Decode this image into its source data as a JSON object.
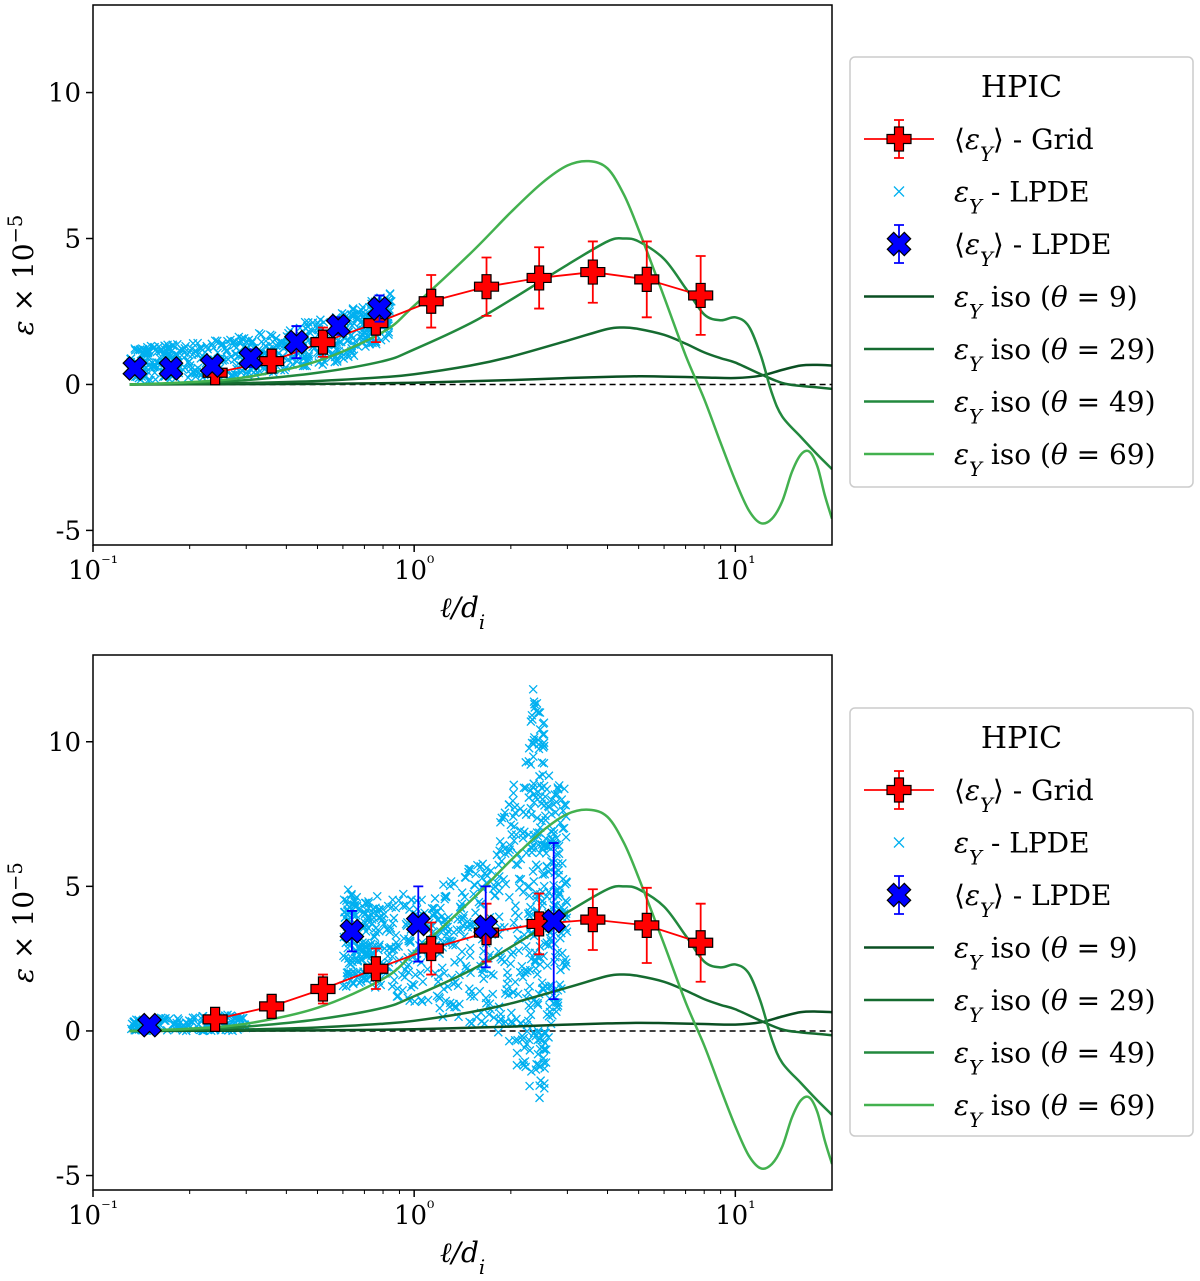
{
  "chart_data": [
    {
      "type": "line",
      "xscale": "log",
      "xlim": [
        0.1,
        20
      ],
      "ylim": [
        -5.5,
        13
      ],
      "xlabel": "ℓ/d_i",
      "ylabel": "ε × 10⁻⁵",
      "xticks": [
        {
          "value": 0.1,
          "label": "10⁻¹"
        },
        {
          "value": 1,
          "label": "10⁰"
        },
        {
          "value": 10,
          "label": "10¹"
        }
      ],
      "yticks": [
        {
          "value": -5,
          "label": "-5"
        },
        {
          "value": 0,
          "label": "0"
        },
        {
          "value": 5,
          "label": "5"
        },
        {
          "value": 10,
          "label": "10"
        }
      ],
      "zero_line": true,
      "grid": false,
      "legend": {
        "title": "HPIC",
        "placement": "right-outside",
        "entries": [
          {
            "label": "⟨ε_Y⟩ - Grid",
            "marker": "plus-errorbar",
            "color": "#ff0000"
          },
          {
            "label": "ε_Y - LPDE",
            "marker": "x-small",
            "color": "#00b0f0"
          },
          {
            "label": "⟨ε_Y⟩ - LPDE",
            "marker": "x-errorbar",
            "color": "#0000ff"
          },
          {
            "label": "ε_Y iso (θ = 9)",
            "marker": "line",
            "color": "#0a4f22"
          },
          {
            "label": "ε_Y iso (θ = 29)",
            "marker": "line",
            "color": "#156b30"
          },
          {
            "label": "ε_Y iso (θ = 49)",
            "marker": "line",
            "color": "#22893e"
          },
          {
            "label": "ε_Y iso (θ = 69)",
            "marker": "line",
            "color": "#43b14f"
          }
        ]
      },
      "series": [
        {
          "kind": "iso",
          "color": "#0a4f22",
          "x": [
            0.13,
            0.2,
            0.3,
            0.5,
            1,
            2,
            3,
            4,
            5,
            6,
            8,
            10,
            12,
            14,
            16,
            18,
            20
          ],
          "y": [
            0,
            0.005,
            0.01,
            0.02,
            0.06,
            0.15,
            0.22,
            0.26,
            0.28,
            0.27,
            0.24,
            0.22,
            0.3,
            0.5,
            0.65,
            0.67,
            0.65
          ]
        },
        {
          "kind": "iso",
          "color": "#156b30",
          "x": [
            0.13,
            0.2,
            0.3,
            0.5,
            0.8,
            1,
            1.5,
            2,
            3,
            4,
            4.5,
            5,
            6,
            7,
            8,
            9,
            10,
            12,
            14,
            16,
            18,
            20
          ],
          "y": [
            0,
            0.02,
            0.05,
            0.12,
            0.25,
            0.35,
            0.65,
            0.95,
            1.5,
            1.9,
            1.95,
            1.9,
            1.7,
            1.4,
            1.1,
            0.9,
            0.75,
            0.35,
            0.05,
            -0.05,
            -0.1,
            -0.15
          ]
        },
        {
          "kind": "iso",
          "color": "#22893e",
          "x": [
            0.13,
            0.2,
            0.3,
            0.5,
            0.8,
            1,
            1.5,
            2,
            3,
            4,
            4.5,
            5,
            6,
            7,
            8,
            9,
            10,
            11,
            12,
            13,
            14,
            16,
            18,
            20
          ],
          "y": [
            0,
            0.05,
            0.15,
            0.4,
            0.8,
            1.2,
            2.1,
            2.9,
            4.1,
            4.9,
            5.0,
            4.9,
            4.3,
            3.3,
            2.4,
            2.2,
            2.3,
            2.0,
            1.0,
            -0.3,
            -1.1,
            -1.8,
            -2.4,
            -2.9
          ]
        },
        {
          "kind": "iso",
          "color": "#43b14f",
          "x": [
            0.13,
            0.2,
            0.3,
            0.5,
            0.8,
            1,
            1.5,
            2,
            2.5,
            3,
            3.5,
            4,
            4.5,
            5,
            6,
            7,
            8,
            9,
            10,
            11,
            12,
            13,
            14,
            15,
            16,
            17,
            18,
            19,
            20
          ],
          "y": [
            0,
            0.08,
            0.25,
            0.8,
            1.8,
            2.7,
            4.5,
            5.9,
            6.9,
            7.5,
            7.65,
            7.4,
            6.5,
            5.3,
            3.0,
            1.0,
            -0.5,
            -2.0,
            -3.3,
            -4.3,
            -4.75,
            -4.6,
            -4.0,
            -3.0,
            -2.4,
            -2.3,
            -2.8,
            -3.8,
            -4.6
          ]
        },
        {
          "kind": "grid",
          "color": "#ff0000",
          "x": [
            0.24,
            0.36,
            0.52,
            0.76,
            1.13,
            1.68,
            2.45,
            3.6,
            5.3,
            7.8
          ],
          "y": [
            0.4,
            0.8,
            1.45,
            2.1,
            2.85,
            3.35,
            3.65,
            3.85,
            3.6,
            3.05
          ],
          "err": [
            0.3,
            0.35,
            0.5,
            0.65,
            0.9,
            1.0,
            1.05,
            1.05,
            1.3,
            1.35
          ]
        },
        {
          "kind": "lpde_mean",
          "color": "#0000ff",
          "x": [
            0.135,
            0.175,
            0.235,
            0.31,
            0.43,
            0.58,
            0.78
          ],
          "y": [
            0.55,
            0.55,
            0.65,
            0.9,
            1.45,
            2.0,
            2.6
          ],
          "err": [
            0.15,
            0.15,
            0.2,
            0.3,
            0.55,
            0.3,
            0.45
          ]
        }
      ],
      "scatter_lpde": {
        "color": "#00b0f0",
        "bands": [
          {
            "x": [
              0.13,
              0.2
            ],
            "ylow": [
              0.1,
              0.2
            ],
            "yhigh": [
              1.3,
              1.4
            ]
          },
          {
            "x": [
              0.2,
              0.35
            ],
            "ylow": [
              0.2,
              0.35
            ],
            "yhigh": [
              1.4,
              1.8
            ]
          },
          {
            "x": [
              0.35,
              0.6
            ],
            "ylow": [
              0.35,
              0.8
            ],
            "yhigh": [
              1.8,
              2.5
            ]
          },
          {
            "x": [
              0.6,
              0.85
            ],
            "ylow": [
              0.8,
              1.6
            ],
            "yhigh": [
              2.5,
              3.2
            ]
          }
        ]
      }
    },
    {
      "type": "line",
      "xscale": "log",
      "xlim": [
        0.1,
        20
      ],
      "ylim": [
        -5.5,
        13
      ],
      "xlabel": "ℓ/d_i",
      "ylabel": "ε × 10⁻⁵",
      "xticks": [
        {
          "value": 0.1,
          "label": "10⁻¹"
        },
        {
          "value": 1,
          "label": "10⁰"
        },
        {
          "value": 10,
          "label": "10¹"
        }
      ],
      "yticks": [
        {
          "value": -5,
          "label": "-5"
        },
        {
          "value": 0,
          "label": "0"
        },
        {
          "value": 5,
          "label": "5"
        },
        {
          "value": 10,
          "label": "10"
        }
      ],
      "zero_line": true,
      "grid": false,
      "legend": {
        "title": "HPIC",
        "placement": "right-outside",
        "entries": [
          {
            "label": "⟨ε_Y⟩ - Grid",
            "marker": "plus-errorbar",
            "color": "#ff0000"
          },
          {
            "label": "ε_Y - LPDE",
            "marker": "x-small",
            "color": "#00b0f0"
          },
          {
            "label": "⟨ε_Y⟩ - LPDE",
            "marker": "x-errorbar",
            "color": "#0000ff"
          },
          {
            "label": "ε_Y iso (θ = 9)",
            "marker": "line",
            "color": "#0a4f22"
          },
          {
            "label": "ε_Y iso (θ = 29)",
            "marker": "line",
            "color": "#156b30"
          },
          {
            "label": "ε_Y iso (θ = 49)",
            "marker": "line",
            "color": "#22893e"
          },
          {
            "label": "ε_Y iso (θ = 69)",
            "marker": "line",
            "color": "#43b14f"
          }
        ]
      },
      "series": [
        {
          "kind": "iso",
          "color": "#0a4f22",
          "x": [
            0.13,
            0.2,
            0.3,
            0.5,
            1,
            2,
            3,
            4,
            5,
            6,
            8,
            10,
            12,
            14,
            16,
            18,
            20
          ],
          "y": [
            0,
            0.005,
            0.01,
            0.02,
            0.06,
            0.15,
            0.22,
            0.26,
            0.28,
            0.27,
            0.24,
            0.22,
            0.3,
            0.5,
            0.65,
            0.67,
            0.65
          ]
        },
        {
          "kind": "iso",
          "color": "#156b30",
          "x": [
            0.13,
            0.2,
            0.3,
            0.5,
            0.8,
            1,
            1.5,
            2,
            3,
            4,
            4.5,
            5,
            6,
            7,
            8,
            9,
            10,
            12,
            14,
            16,
            18,
            20
          ],
          "y": [
            0,
            0.02,
            0.05,
            0.12,
            0.25,
            0.35,
            0.65,
            0.95,
            1.5,
            1.9,
            1.95,
            1.9,
            1.7,
            1.4,
            1.1,
            0.9,
            0.75,
            0.35,
            0.05,
            -0.05,
            -0.1,
            -0.15
          ]
        },
        {
          "kind": "iso",
          "color": "#22893e",
          "x": [
            0.13,
            0.2,
            0.3,
            0.5,
            0.8,
            1,
            1.5,
            2,
            3,
            4,
            4.5,
            5,
            6,
            7,
            8,
            9,
            10,
            11,
            12,
            13,
            14,
            16,
            18,
            20
          ],
          "y": [
            0,
            0.05,
            0.15,
            0.4,
            0.8,
            1.2,
            2.1,
            2.9,
            4.1,
            4.9,
            5.0,
            4.9,
            4.3,
            3.3,
            2.4,
            2.2,
            2.3,
            2.0,
            1.0,
            -0.3,
            -1.1,
            -1.8,
            -2.4,
            -2.9
          ]
        },
        {
          "kind": "iso",
          "color": "#43b14f",
          "x": [
            0.13,
            0.2,
            0.3,
            0.5,
            0.8,
            1,
            1.5,
            2,
            2.5,
            3,
            3.5,
            4,
            4.5,
            5,
            6,
            7,
            8,
            9,
            10,
            11,
            12,
            13,
            14,
            15,
            16,
            17,
            18,
            19,
            20
          ],
          "y": [
            0,
            0.08,
            0.25,
            0.8,
            1.8,
            2.7,
            4.5,
            5.9,
            6.9,
            7.5,
            7.65,
            7.4,
            6.5,
            5.3,
            3.0,
            1.0,
            -0.5,
            -2.0,
            -3.3,
            -4.3,
            -4.75,
            -4.6,
            -4.0,
            -3.0,
            -2.4,
            -2.3,
            -2.8,
            -3.8,
            -4.6
          ]
        },
        {
          "kind": "grid",
          "color": "#ff0000",
          "x": [
            0.24,
            0.36,
            0.52,
            0.76,
            1.13,
            1.68,
            2.45,
            3.6,
            5.3,
            7.8
          ],
          "y": [
            0.4,
            0.85,
            1.45,
            2.15,
            2.85,
            3.4,
            3.7,
            3.85,
            3.65,
            3.05
          ],
          "err": [
            0.3,
            0.35,
            0.5,
            0.7,
            0.9,
            1.0,
            1.05,
            1.05,
            1.3,
            1.35
          ]
        },
        {
          "kind": "lpde_mean",
          "color": "#0000ff",
          "x": [
            0.15,
            0.64,
            1.03,
            1.67,
            2.72
          ],
          "y": [
            0.2,
            3.45,
            3.7,
            3.6,
            3.8
          ],
          "err": [
            0.05,
            0.7,
            1.3,
            1.4,
            2.7
          ]
        }
      ],
      "scatter_lpde": {
        "color": "#00b0f0",
        "bands": [
          {
            "x": [
              0.13,
              0.3
            ],
            "ylow": [
              0.0,
              0.0
            ],
            "yhigh": [
              0.4,
              0.6
            ]
          },
          {
            "x": [
              0.6,
              0.75
            ],
            "ylow": [
              1.5,
              1.8
            ],
            "yhigh": [
              5.0,
              4.4
            ]
          },
          {
            "x": [
              0.75,
              1.2
            ],
            "ylow": [
              1.2,
              0.8
            ],
            "yhigh": [
              4.7,
              4.8
            ]
          },
          {
            "x": [
              1.2,
              1.8
            ],
            "ylow": [
              0.5,
              0.0
            ],
            "yhigh": [
              5.2,
              6.0
            ]
          },
          {
            "x": [
              1.8,
              2.3
            ],
            "ylow": [
              0.0,
              -2.0
            ],
            "yhigh": [
              7.0,
              10.0
            ]
          },
          {
            "x": [
              2.3,
              2.55
            ],
            "ylow": [
              -3.5,
              -2.0
            ],
            "yhigh": [
              12.2,
              11.0
            ]
          },
          {
            "x": [
              2.55,
              3.0
            ],
            "ylow": [
              -1.5,
              2.5
            ],
            "yhigh": [
              9.0,
              8.3
            ]
          }
        ]
      }
    }
  ]
}
